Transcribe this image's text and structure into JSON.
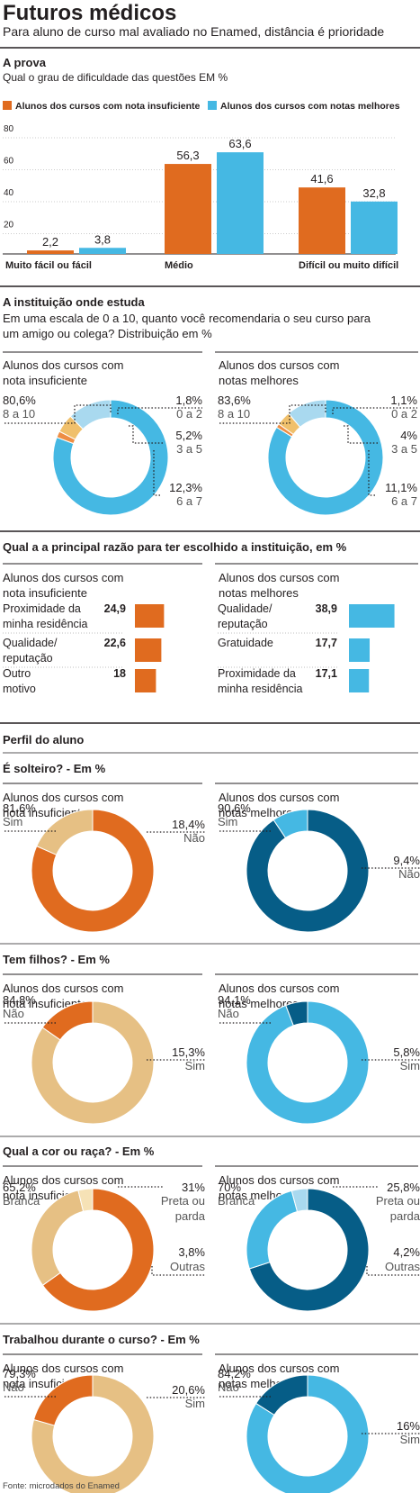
{
  "title": "Futuros médicos",
  "subtitle": "Para aluno de curso mal avaliado no Enamed, distância é prioridade",
  "colors": {
    "orange": "#e06b1f",
    "blue": "#45b8e3",
    "light_blue": "#a9d9ef",
    "light_orange": "#f0c06c",
    "dark_blue": "#065d87",
    "tan": "#e6c084",
    "pale": "#f6e2b6",
    "text": "#231f20",
    "gray": "#9a9a9a"
  },
  "prova": {
    "heading": "A prova",
    "question": "Qual o grau de dificuldade das questões EM %",
    "legend": [
      "Alunos dos cursos com nota insuficiente",
      "Alunos dos cursos com notas melhores"
    ]
  },
  "instituicao": {
    "heading": "A instituição onde estuda",
    "question": "Em uma escala de 0 a 10, quanto você recomendaria o seu curso para um amigo ou colega? Distribuição em %"
  },
  "razao": {
    "heading": "Qual a a principal razão para ter escolhido a instituição, em %"
  },
  "perfil": {
    "heading": "Perfil do aluno"
  },
  "group_labels": {
    "insuf": [
      "Alunos dos cursos com",
      "nota insuficiente"
    ],
    "melhor": [
      "Alunos dos cursos com",
      "notas melhores"
    ]
  },
  "source": "Fonte: microdados do Enamed",
  "chart_data": [
    {
      "type": "bar",
      "title": "A prova",
      "categories": [
        "Muito fácil ou fácil",
        "Médio",
        "Difícil ou muito difícil"
      ],
      "series": [
        {
          "name": "Alunos dos cursos com nota insuficiente",
          "values": [
            2.2,
            56.3,
            41.6
          ]
        },
        {
          "name": "Alunos dos cursos com notas melhores",
          "values": [
            3.8,
            63.6,
            32.8
          ]
        }
      ],
      "value_labels": [
        [
          "2,2",
          "56,3",
          "41,6"
        ],
        [
          "3,8",
          "63,6",
          "32,8"
        ]
      ],
      "y_ticks": [
        "20",
        "40",
        "60",
        "80"
      ],
      "ylim": [
        0,
        80
      ],
      "grid": true
    },
    {
      "type": "pie",
      "title": "Alunos dos cursos com nota insuficiente",
      "slices": [
        {
          "label": "8 a 10",
          "value": 80.6,
          "text": "80,6%"
        },
        {
          "label": "0 a 2",
          "value": 1.8,
          "text": "1,8%"
        },
        {
          "label": "3 a 5",
          "value": 5.2,
          "text": "5,2%"
        },
        {
          "label": "6 a 7",
          "value": 12.3,
          "text": "12,3%"
        }
      ]
    },
    {
      "type": "pie",
      "title": "Alunos dos cursos com notas melhores",
      "slices": [
        {
          "label": "8 a 10",
          "value": 83.6,
          "text": "83,6%"
        },
        {
          "label": "0 a 2",
          "value": 1.1,
          "text": "1,1%"
        },
        {
          "label": "3 a 5",
          "value": 4,
          "text": "4%"
        },
        {
          "label": "6 a 7",
          "value": 11.1,
          "text": "11,1%"
        }
      ]
    },
    {
      "type": "bar",
      "title": "Alunos dos cursos com nota insuficiente",
      "categories": [
        "Proximidade da minha residência",
        "Qualidade/ reputação",
        "Outro motivo"
      ],
      "values": [
        24.9,
        22.6,
        18
      ],
      "value_labels": [
        "24,9",
        "22,6",
        "18"
      ],
      "category_lines": [
        [
          "Proximidade da",
          "minha residência"
        ],
        [
          "Qualidade/",
          "reputação"
        ],
        [
          "Outro",
          "motivo"
        ]
      ]
    },
    {
      "type": "bar",
      "title": "Alunos dos cursos com notas melhores",
      "categories": [
        "Qualidade/ reputação",
        "Gratuidade",
        "Proximidade da minha residência"
      ],
      "values": [
        38.9,
        17.7,
        17.1
      ],
      "value_labels": [
        "38,9",
        "17,7",
        "17,1"
      ],
      "category_lines": [
        [
          "Qualidade/",
          "reputação"
        ],
        [
          "Gratuidade"
        ],
        [
          "Proximidade da",
          "minha residência"
        ]
      ]
    },
    {
      "type": "pie",
      "title": "É solteiro? - Em %",
      "group": "Alunos dos cursos com nota insuficiente",
      "slices": [
        {
          "label": "Sim",
          "value": 81.6,
          "text": "81,6%"
        },
        {
          "label": "Não",
          "value": 18.4,
          "text": "18,4%"
        }
      ]
    },
    {
      "type": "pie",
      "title": "É solteiro? - Em %",
      "group": "Alunos dos cursos com notas melhores",
      "slices": [
        {
          "label": "Sim",
          "value": 90.6,
          "text": "90,6%"
        },
        {
          "label": "Não",
          "value": 9.4,
          "text": "9,4%"
        }
      ]
    },
    {
      "type": "pie",
      "title": "Tem filhos? - Em %",
      "group": "Alunos dos cursos com nota insuficiente",
      "slices": [
        {
          "label": "Não",
          "value": 84.8,
          "text": "84,8%"
        },
        {
          "label": "Sim",
          "value": 15.3,
          "text": "15,3%"
        }
      ]
    },
    {
      "type": "pie",
      "title": "Tem filhos? - Em %",
      "group": "Alunos dos cursos com notas melhores",
      "slices": [
        {
          "label": "Não",
          "value": 94.1,
          "text": "94,1%"
        },
        {
          "label": "Sim",
          "value": 5.8,
          "text": "5,8%"
        }
      ]
    },
    {
      "type": "pie",
      "title": "Qual a cor ou raça? - Em %",
      "group": "Alunos dos cursos com nota insuficiente",
      "slices": [
        {
          "label": "Branca",
          "value": 65.2,
          "text": "65,2%"
        },
        {
          "label": "Preta ou parda",
          "value": 31,
          "text": "31%"
        },
        {
          "label": "Outras",
          "value": 3.8,
          "text": "3,8%"
        }
      ]
    },
    {
      "type": "pie",
      "title": "Qual a cor ou raça? - Em %",
      "group": "Alunos dos cursos com notas melhores",
      "slices": [
        {
          "label": "Branca",
          "value": 70,
          "text": "70%"
        },
        {
          "label": "Preta ou parda",
          "value": 25.8,
          "text": "25,8%"
        },
        {
          "label": "Outras",
          "value": 4.2,
          "text": "4,2%"
        }
      ]
    },
    {
      "type": "pie",
      "title": "Trabalhou durante o curso? - Em %",
      "group": "Alunos dos cursos com nota insuficiente",
      "slices": [
        {
          "label": "Não",
          "value": 79.3,
          "text": "79,3%"
        },
        {
          "label": "Sim",
          "value": 20.6,
          "text": "20,6%"
        }
      ]
    },
    {
      "type": "pie",
      "title": "Trabalhou durante o curso? - Em %",
      "group": "Alunos dos cursos com notas melhores",
      "slices": [
        {
          "label": "Não",
          "value": 84.2,
          "text": "84,2%"
        },
        {
          "label": "Sim",
          "value": 16,
          "text": "16%"
        }
      ]
    }
  ]
}
